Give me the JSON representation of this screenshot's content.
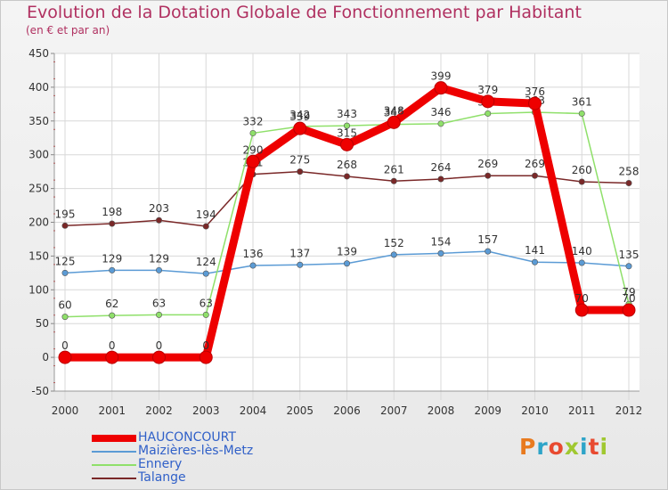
{
  "title": "Evolution de la Dotation Globale de Fonctionnement par Habitant",
  "subtitle": "(en € et par an)",
  "brand": {
    "text": "Proxiti",
    "colors": [
      "#e87a1e",
      "#2ea4c8",
      "#e84a30",
      "#a0c830",
      "#2ea4c8",
      "#e84a30",
      "#a0c830"
    ]
  },
  "chart_data": {
    "type": "line",
    "title": "Evolution de la Dotation Globale de Fonctionnement par Habitant",
    "subtitle": "(en € et par an)",
    "xlabel": "",
    "ylabel": "",
    "x": [
      "2000",
      "2001",
      "2002",
      "2003",
      "2004",
      "2005",
      "2006",
      "2007",
      "2008",
      "2009",
      "2010",
      "2011",
      "2012"
    ],
    "ylim": [
      -50,
      450
    ],
    "yticks": [
      "-50",
      "0",
      "50",
      "100",
      "150",
      "200",
      "250",
      "300",
      "350",
      "400",
      "450"
    ],
    "grid": true,
    "legend_position": "bottom-left",
    "series": [
      {
        "name": "Talange",
        "color": "#7a2828",
        "values": [
          195,
          198,
          203,
          194,
          271,
          275,
          268,
          261,
          264,
          269,
          269,
          260,
          258
        ],
        "labels": [
          "195",
          "198",
          "203",
          "194",
          "271",
          "275",
          "268",
          "261",
          "264",
          "269",
          "269",
          "260",
          "258"
        ]
      },
      {
        "name": "Maizières-lès-Metz",
        "color": "#5b9bd5",
        "values": [
          125,
          129,
          129,
          124,
          136,
          137,
          139,
          152,
          154,
          157,
          141,
          140,
          135
        ],
        "labels": [
          "125",
          "129",
          "129",
          "124",
          "136",
          "137",
          "139",
          "152",
          "154",
          "157",
          "141",
          "140",
          "135"
        ]
      },
      {
        "name": "Ennery",
        "color": "#8fe06a",
        "values": [
          60,
          62,
          63,
          63,
          332,
          342,
          343,
          345,
          346,
          361,
          363,
          361,
          79
        ],
        "labels": [
          "60",
          "62",
          "63",
          "63",
          "332",
          "342",
          "343",
          "345",
          "346",
          "361",
          "363",
          "361",
          "79"
        ]
      },
      {
        "name": "HAUCONCOURT",
        "color": "#ee0000",
        "values": [
          0,
          0,
          0,
          0,
          290,
          339,
          315,
          348,
          399,
          379,
          376,
          70,
          70
        ],
        "labels": [
          "0",
          "0",
          "0",
          "0",
          "290",
          "339",
          "315",
          "348",
          "399",
          "379",
          "376",
          "70",
          "70"
        ]
      }
    ],
    "legend": [
      {
        "name": "HAUCONCOURT",
        "color": "#ee0000",
        "text_color": "#3060c8",
        "thick": true
      },
      {
        "name": "Maizières-lès-Metz",
        "color": "#5b9bd5",
        "text_color": "#3060c8",
        "thick": false
      },
      {
        "name": "Ennery",
        "color": "#8fe06a",
        "text_color": "#3060c8",
        "thick": false
      },
      {
        "name": "Talange",
        "color": "#7a2828",
        "text_color": "#3060c8",
        "thick": false
      }
    ]
  }
}
